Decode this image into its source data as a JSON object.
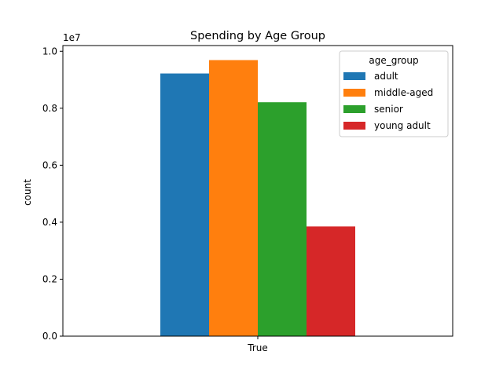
{
  "chart_data": {
    "type": "bar",
    "title": "Spending by Age Group",
    "xlabel": "",
    "ylabel": "count",
    "scale_label": "1e7",
    "scale_factor": 10000000,
    "categories": [
      "True"
    ],
    "ylim": [
      0,
      1.02
    ],
    "yticks": [
      0.0,
      0.2,
      0.4,
      0.6,
      0.8,
      1.0
    ],
    "ytick_labels": [
      "0.0",
      "0.2",
      "0.4",
      "0.6",
      "0.8",
      "1.0"
    ],
    "legend": {
      "title": "age_group",
      "placement": "top-right"
    },
    "grid": false,
    "series": [
      {
        "name": "adult",
        "values": [
          0.922
        ],
        "color": "#1f77b4"
      },
      {
        "name": "middle-aged",
        "values": [
          0.969
        ],
        "color": "#ff7f0e"
      },
      {
        "name": "senior",
        "values": [
          0.821
        ],
        "color": "#2ca02c"
      },
      {
        "name": "young adult",
        "values": [
          0.385
        ],
        "color": "#d62728"
      }
    ]
  }
}
